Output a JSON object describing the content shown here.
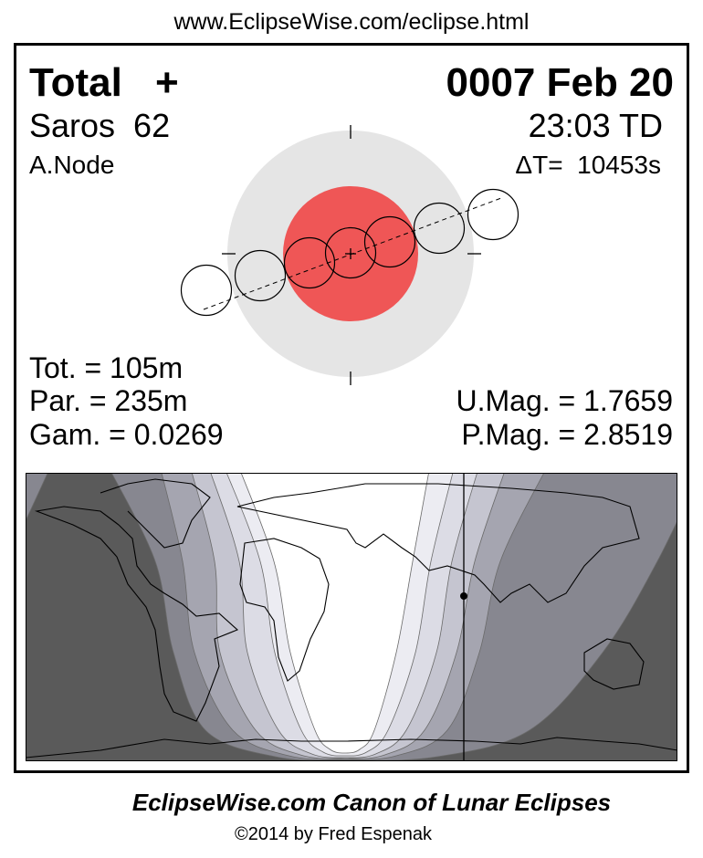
{
  "header": {
    "url": "www.EclipseWise.com/eclipse.html"
  },
  "eclipse": {
    "type": "Total",
    "type_symbol": "+",
    "date": "0007 Feb 20",
    "saros": "Saros  62",
    "time": "23:03 TD",
    "node": "A.Node",
    "delta_t": "ΔT=  10453s",
    "totality": "Tot. = 105m",
    "partial": "Par. = 235m",
    "gamma": "Gam. = 0.0269",
    "umbral_mag": "U.Mag. = 1.7659",
    "penumbral_mag": "P.Mag. = 2.8519"
  },
  "colors": {
    "penumbra": "#e5e5e5",
    "umbra": "#ef5656",
    "map_bands": [
      "#ffffff",
      "#ececf2",
      "#dcdce5",
      "#c5c5d0",
      "#a5a5b0",
      "#878790",
      "#5a5a5a"
    ]
  },
  "footer": {
    "title": "EclipseWise.com Canon of Lunar Eclipses",
    "copyright": "©2014 by Fred Espenak"
  }
}
